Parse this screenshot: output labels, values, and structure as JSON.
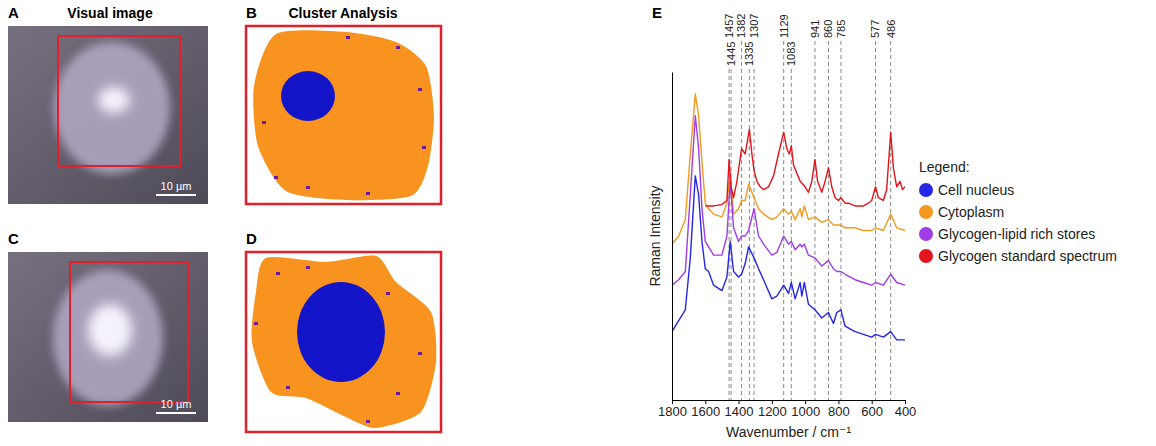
{
  "panels": {
    "A": {
      "letter": "A",
      "title": "Visual image",
      "scale_bar": "10 µm"
    },
    "B": {
      "letter": "B",
      "title": "Cluster Analysis"
    },
    "C": {
      "letter": "C",
      "scale_bar": "10 µm"
    },
    "D": {
      "letter": "D"
    }
  },
  "chart_data": {
    "type": "line",
    "letter": "E",
    "x_label": "Wavenumber / cm⁻¹",
    "y_label": "Raman Intensity",
    "xlim": [
      1800,
      400
    ],
    "xticks": [
      1800,
      1600,
      1400,
      1200,
      1000,
      800,
      600,
      400
    ],
    "ylim": [
      0,
      120
    ],
    "tick_labels": "x",
    "legend": "right",
    "legend_title": "Legend:",
    "vlines": [
      1457,
      1445,
      1382,
      1335,
      1307,
      1129,
      1083,
      941,
      860,
      785,
      577,
      486
    ],
    "series": [
      {
        "name": "Cell nucleus",
        "color": "#2626e6",
        "x": [
          1800,
          1760,
          1720,
          1690,
          1660,
          1640,
          1620,
          1600,
          1580,
          1550,
          1500,
          1470,
          1450,
          1430,
          1400,
          1382,
          1360,
          1340,
          1307,
          1280,
          1250,
          1200,
          1170,
          1129,
          1100,
          1083,
          1060,
          1030,
          1020,
          1005,
          980,
          941,
          900,
          860,
          830,
          810,
          785,
          760,
          700,
          650,
          600,
          577,
          530,
          486,
          450,
          400
        ],
        "values": [
          25,
          29,
          33,
          52,
          82,
          75,
          58,
          48,
          47,
          42,
          40,
          45,
          58,
          47,
          45,
          46,
          50,
          56,
          52,
          48,
          44,
          37,
          38,
          42,
          39,
          43,
          37,
          43,
          38,
          43,
          35,
          33,
          30,
          32,
          28,
          32,
          33,
          27,
          25,
          24,
          23,
          24,
          23,
          25,
          22,
          22
        ]
      },
      {
        "name": "Cytoplasm",
        "color": "#f39a1e",
        "x": [
          1800,
          1760,
          1720,
          1690,
          1660,
          1640,
          1620,
          1600,
          1580,
          1550,
          1500,
          1470,
          1450,
          1430,
          1400,
          1382,
          1360,
          1340,
          1307,
          1280,
          1250,
          1200,
          1170,
          1129,
          1100,
          1083,
          1060,
          1030,
          1020,
          1005,
          980,
          941,
          900,
          860,
          830,
          810,
          785,
          760,
          700,
          650,
          600,
          577,
          530,
          486,
          450,
          400
        ],
        "values": [
          57,
          60,
          66,
          90,
          112,
          104,
          87,
          72,
          70,
          68,
          67,
          72,
          83,
          68,
          70,
          73,
          73,
          79,
          74,
          70,
          68,
          66,
          67,
          70,
          68,
          69,
          66,
          70,
          67,
          71,
          66,
          67,
          65,
          66,
          64,
          64,
          64,
          63,
          63,
          62,
          62,
          63,
          62,
          68,
          63,
          62
        ]
      },
      {
        "name": "Glycogen-lipid rich stores",
        "color": "#a03ce8",
        "x": [
          1800,
          1760,
          1720,
          1690,
          1660,
          1640,
          1620,
          1600,
          1580,
          1550,
          1500,
          1470,
          1450,
          1430,
          1400,
          1382,
          1360,
          1340,
          1307,
          1280,
          1250,
          1200,
          1170,
          1129,
          1100,
          1083,
          1060,
          1030,
          1020,
          1005,
          980,
          941,
          900,
          860,
          830,
          810,
          785,
          760,
          700,
          650,
          600,
          577,
          530,
          486,
          450,
          400
        ],
        "values": [
          42,
          44,
          47,
          75,
          104,
          92,
          70,
          58,
          56,
          53,
          53,
          60,
          80,
          63,
          58,
          60,
          60,
          62,
          70,
          60,
          57,
          53,
          54,
          60,
          57,
          58,
          55,
          57,
          56,
          57,
          53,
          52,
          49,
          51,
          48,
          47,
          47,
          46,
          44,
          43,
          42,
          43,
          42,
          46,
          43,
          42
        ]
      },
      {
        "name": "Glycogen standard spectrum",
        "color": "#e3141c",
        "x": [
          1600,
          1550,
          1500,
          1470,
          1457,
          1445,
          1430,
          1410,
          1382,
          1360,
          1335,
          1320,
          1307,
          1290,
          1270,
          1250,
          1220,
          1190,
          1160,
          1129,
          1110,
          1095,
          1083,
          1070,
          1050,
          1030,
          1000,
          980,
          960,
          941,
          925,
          900,
          880,
          860,
          840,
          820,
          800,
          785,
          760,
          740,
          700,
          650,
          620,
          600,
          577,
          560,
          530,
          510,
          486,
          470,
          450,
          430,
          415,
          400
        ],
        "values": [
          71,
          71,
          71.5,
          73,
          88,
          78,
          74,
          80,
          92,
          90,
          99,
          90,
          84,
          80,
          78,
          77,
          78,
          82,
          90,
          98,
          92,
          90,
          93,
          86,
          83,
          80,
          78,
          76,
          80,
          88,
          80,
          76,
          80,
          85,
          78,
          74,
          73,
          74,
          72,
          72,
          71,
          71,
          72,
          73,
          78,
          74,
          73,
          77,
          98,
          85,
          78,
          80,
          77,
          78
        ]
      }
    ]
  }
}
